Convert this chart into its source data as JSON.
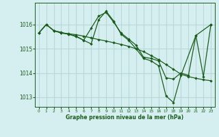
{
  "bg_color": "#d5eef0",
  "grid_color": "#b8d8d8",
  "line_color": "#1a5c1a",
  "marker_color": "#1a5c1a",
  "xlabel": "Graphe pression niveau de la mer (hPa)",
  "xlabel_color": "#1a5c1a",
  "tick_color": "#1a5c1a",
  "ylim": [
    1012.6,
    1016.9
  ],
  "xlim": [
    -0.5,
    23.5
  ],
  "yticks": [
    1013,
    1014,
    1015,
    1016
  ],
  "xtick_labels": [
    "0",
    "1",
    "2",
    "3",
    "4",
    "5",
    "6",
    "7",
    "8",
    "9",
    "10",
    "11",
    "12",
    "13",
    "14",
    "15",
    "16",
    "17",
    "18",
    "19",
    "20",
    "21",
    "22",
    "23"
  ],
  "series1_x": [
    0,
    1,
    2,
    3,
    4,
    5,
    6,
    7,
    8,
    9,
    10,
    11,
    12,
    13,
    14,
    15,
    16,
    17,
    18,
    19,
    20,
    21,
    22,
    23
  ],
  "series1_y": [
    1015.65,
    1016.0,
    1015.75,
    1015.65,
    1015.62,
    1015.58,
    1015.52,
    1015.45,
    1015.38,
    1015.32,
    1015.25,
    1015.18,
    1015.1,
    1015.0,
    1014.88,
    1014.72,
    1014.55,
    1014.35,
    1014.15,
    1013.95,
    1013.85,
    1013.78,
    1013.72,
    1013.68
  ],
  "series2_x": [
    0,
    1,
    2,
    3,
    4,
    5,
    6,
    7,
    8,
    9,
    10,
    11,
    12,
    13,
    14,
    15,
    16,
    17,
    18,
    19,
    20,
    21,
    23
  ],
  "series2_y": [
    1015.65,
    1016.0,
    1015.75,
    1015.68,
    1015.6,
    1015.52,
    1015.35,
    1015.85,
    1016.35,
    1016.5,
    1016.1,
    1015.65,
    1015.4,
    1015.15,
    1014.65,
    1014.6,
    1014.5,
    1013.8,
    1013.75,
    1014.0,
    1013.9,
    1015.55,
    1016.0
  ],
  "series3_x": [
    0,
    1,
    2,
    3,
    4,
    5,
    6,
    7,
    8,
    9,
    10,
    11,
    12,
    13,
    14,
    15,
    16,
    17,
    18,
    19,
    21,
    22,
    23
  ],
  "series3_y": [
    1015.65,
    1016.0,
    1015.75,
    1015.65,
    1015.6,
    1015.5,
    1015.35,
    1015.2,
    1016.2,
    1016.55,
    1016.15,
    1015.6,
    1015.35,
    1015.0,
    1014.6,
    1014.5,
    1014.3,
    1013.05,
    1012.78,
    1013.9,
    1015.55,
    1013.85,
    1016.0
  ]
}
